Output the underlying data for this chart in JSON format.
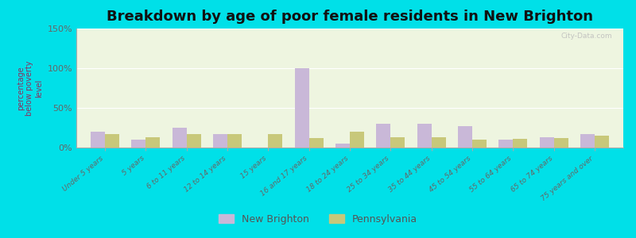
{
  "title": "Breakdown by age of poor female residents in New Brighton",
  "ylabel": "percentage\nbelow poverty\nlevel",
  "categories": [
    "Under 5 years",
    "5 years",
    "6 to 11 years",
    "12 to 14 years",
    "15 years",
    "16 and 17 years",
    "18 to 24 years",
    "25 to 34 years",
    "35 to 44 years",
    "45 to 54 years",
    "55 to 64 years",
    "65 to 74 years",
    "75 years and over"
  ],
  "new_brighton": [
    20,
    10,
    25,
    17,
    0,
    100,
    5,
    30,
    30,
    27,
    10,
    13,
    17
  ],
  "pennsylvania": [
    17,
    13,
    17,
    17,
    17,
    12,
    20,
    13,
    13,
    10,
    11,
    12,
    15
  ],
  "ylim": [
    0,
    150
  ],
  "yticks": [
    0,
    50,
    100,
    150
  ],
  "ytick_labels": [
    "0%",
    "50%",
    "100%",
    "150%"
  ],
  "bar_color_nb": "#c9b8d8",
  "bar_color_pa": "#c8c87a",
  "bg_outer": "#00e0e8",
  "bg_plot": "#eef5e0",
  "legend_label_nb": "New Brighton",
  "legend_label_pa": "Pennsylvania",
  "title_fontsize": 13,
  "bar_width": 0.35
}
